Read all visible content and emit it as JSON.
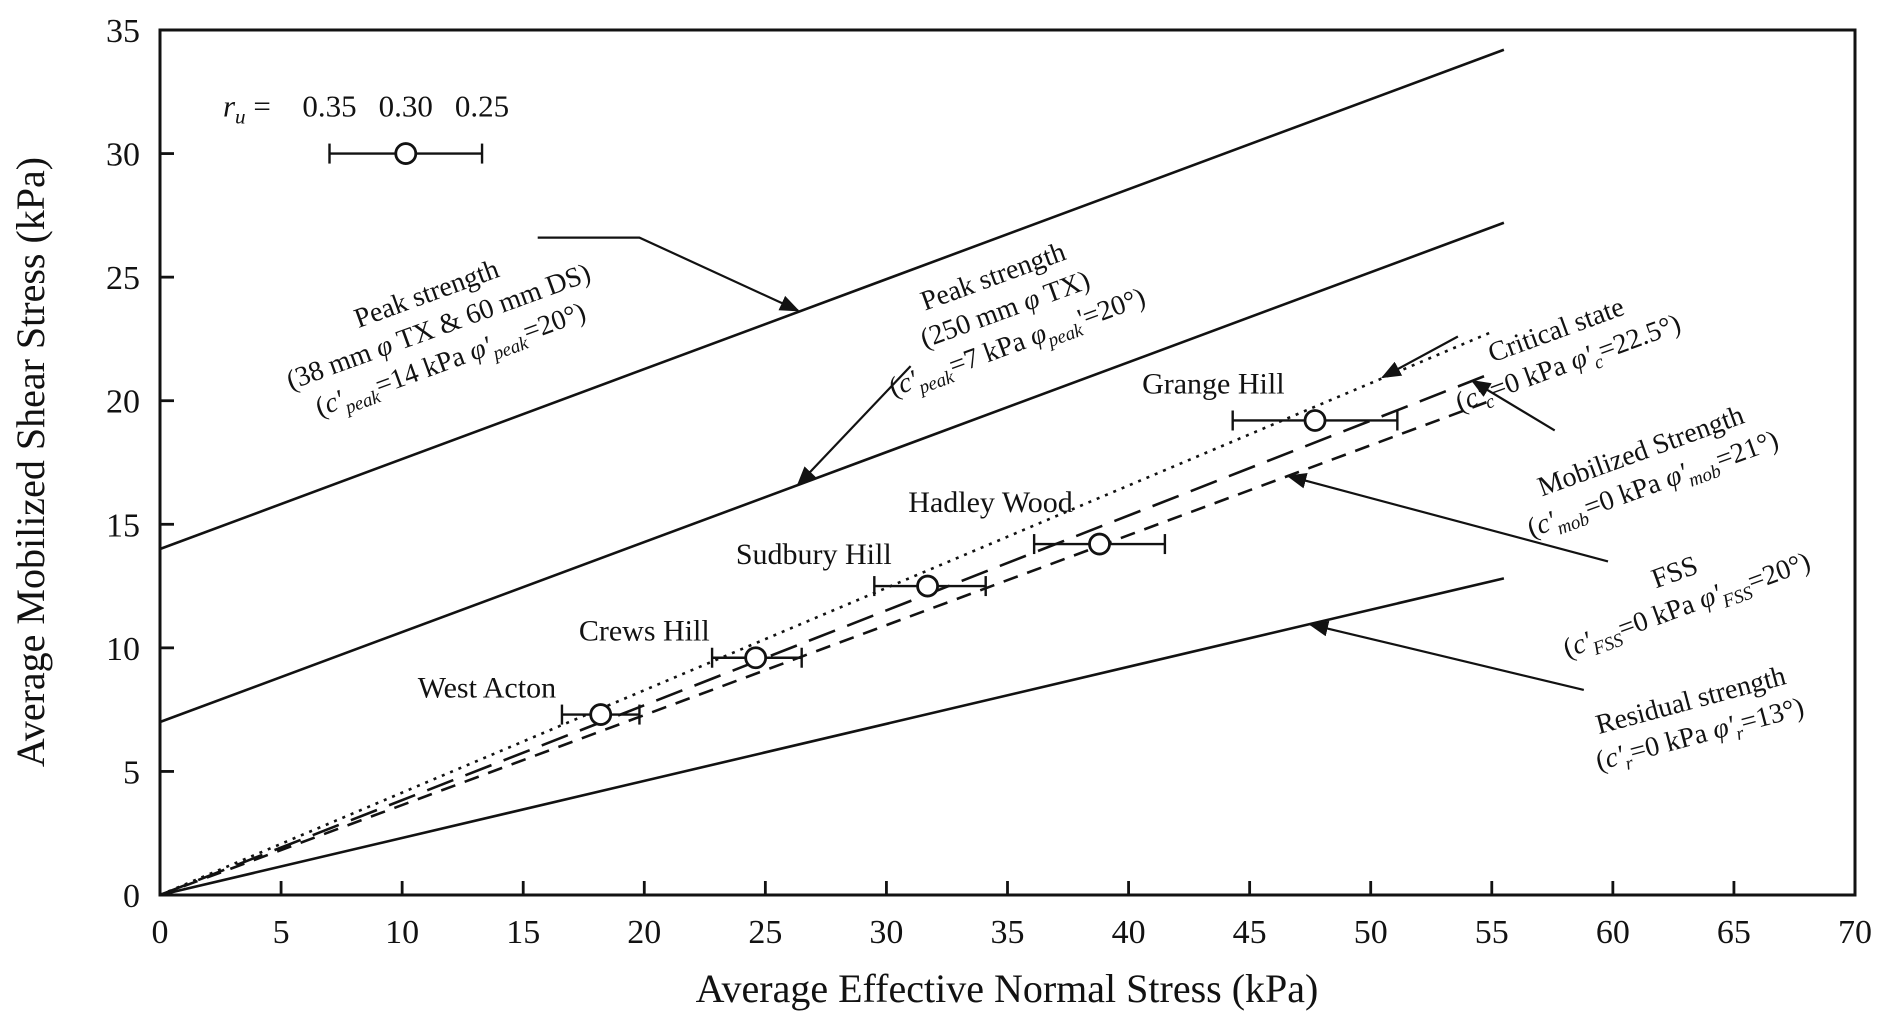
{
  "figure": {
    "background": "#ffffff",
    "ink_color": "#121212"
  },
  "chart_data": {
    "type": "line",
    "title": "",
    "xlabel": "Average Effective Normal Stress (kPa)",
    "ylabel": "Average Mobilized Shear Stress (kPa)",
    "xlim": [
      0,
      70
    ],
    "ylim": [
      0,
      35
    ],
    "xticks": [
      0,
      5,
      10,
      15,
      20,
      25,
      30,
      35,
      40,
      45,
      50,
      55,
      60,
      65,
      70
    ],
    "yticks": [
      0,
      5,
      10,
      15,
      20,
      25,
      30,
      35
    ],
    "grid": false,
    "envelope_lines": [
      {
        "name": "peak-strength-38mm-tx-60mm-ds",
        "cohesion_kpa": 14,
        "friction_angle_deg": 20,
        "x_range": [
          0,
          55.5
        ],
        "style": "solid"
      },
      {
        "name": "peak-strength-250mm-tx",
        "cohesion_kpa": 7,
        "friction_angle_deg": 20,
        "x_range": [
          0,
          55.5
        ],
        "style": "solid"
      },
      {
        "name": "critical-state",
        "cohesion_kpa": 0,
        "friction_angle_deg": 22.5,
        "x_range": [
          0,
          55
        ],
        "style": "dotted"
      },
      {
        "name": "mobilized-strength",
        "cohesion_kpa": 0,
        "friction_angle_deg": 21,
        "x_range": [
          0,
          55
        ],
        "style": "longdash"
      },
      {
        "name": "fss",
        "cohesion_kpa": 0,
        "friction_angle_deg": 20,
        "x_range": [
          0,
          55
        ],
        "style": "dash"
      },
      {
        "name": "residual-strength",
        "cohesion_kpa": 0,
        "friction_angle_deg": 13,
        "x_range": [
          0,
          55.5
        ],
        "style": "solid"
      }
    ],
    "data_points": [
      {
        "label": "West Acton",
        "x": 18.2,
        "y": 7.3,
        "xerr_minus": 1.6,
        "xerr_plus": 1.6,
        "label_x": 13.5,
        "label_y": 8.4
      },
      {
        "label": "Crews Hill",
        "x": 24.6,
        "y": 9.6,
        "xerr_minus": 1.8,
        "xerr_plus": 1.9,
        "label_x": 20.0,
        "label_y": 10.7
      },
      {
        "label": "Sudbury Hill",
        "x": 31.7,
        "y": 12.5,
        "xerr_minus": 2.2,
        "xerr_plus": 2.4,
        "label_x": 27.0,
        "label_y": 13.8
      },
      {
        "label": "Hadley Wood",
        "x": 38.8,
        "y": 14.2,
        "xerr_minus": 2.7,
        "xerr_plus": 2.7,
        "label_x": 34.3,
        "label_y": 15.9
      },
      {
        "label": "Grange Hill",
        "x": 47.7,
        "y": 19.2,
        "xerr_minus": 3.4,
        "xerr_plus": 3.4,
        "label_x": 43.5,
        "label_y": 20.7
      }
    ],
    "ru_scale_legend": {
      "label": "*r*~u~ =",
      "label_x": 2.6,
      "text_y": 31.9,
      "values": [
        {
          "text": "0.35",
          "x": 7.0
        },
        {
          "text": "0.30",
          "x": 10.15
        },
        {
          "text": "0.25",
          "x": 13.3
        }
      ],
      "bar_x_start": 7.0,
      "bar_x_end": 13.3,
      "marker_x": 10.15,
      "marker_y": 30.0
    },
    "annotations": [
      {
        "name": "peak-strength-38mm-tx-60mm-ds",
        "lines": [
          "Peak strength",
          "(38 mm *φ* TX & 60 mm DS)",
          "(*c'*~peak~=14 kPa *φ'*~peak~=20°)"
        ],
        "x": 11.5,
        "y": 23.0,
        "rotation_deg": -20,
        "arrow": [
          [
            15.6,
            26.6
          ],
          [
            19.8,
            26.6
          ],
          [
            26.35,
            23.65
          ]
        ]
      },
      {
        "name": "peak-strength-250mm-tx",
        "lines": [
          "Peak strength",
          "(250 mm *φ* TX)",
          "(*c'*~peak~=7 kPa *φ*~peak~'=20°)"
        ],
        "x": 34.9,
        "y": 23.7,
        "rotation_deg": -20,
        "arrow": [
          [
            31.0,
            21.4
          ],
          [
            26.35,
            16.6
          ]
        ]
      },
      {
        "name": "critical-state",
        "lines": [
          "Critical state",
          "(*c'*~c~=0 kPa *φ'*~c~=22.5°)"
        ],
        "x": 57.9,
        "y": 22.2,
        "rotation_deg": -20,
        "arrow": [
          [
            53.6,
            22.6
          ],
          [
            50.5,
            20.95
          ]
        ]
      },
      {
        "name": "mobilized-strength",
        "lines": [
          "Mobilized Strength",
          "(*c'*~mob~=0 kPa *φ'*~mob~=21°)"
        ],
        "x": 61.4,
        "y": 17.3,
        "rotation_deg": -20,
        "arrow": [
          [
            57.6,
            18.8
          ],
          [
            54.2,
            20.8
          ]
        ]
      },
      {
        "name": "fss",
        "lines": [
          "FSS",
          "(*c'*~FSS~=0 kPa *φ'*~FSS~=20°)"
        ],
        "x": 62.8,
        "y": 12.4,
        "rotation_deg": -20,
        "arrow": [
          [
            59.8,
            13.5
          ],
          [
            46.6,
            16.95
          ]
        ]
      },
      {
        "name": "residual-strength",
        "lines": [
          "Residual strength",
          "(*c'*~r~=0 kPa *φ'*~r~=13°)"
        ],
        "x": 63.4,
        "y": 7.2,
        "rotation_deg": -15,
        "arrow": [
          [
            58.8,
            8.3
          ],
          [
            47.5,
            10.95
          ]
        ]
      }
    ]
  }
}
